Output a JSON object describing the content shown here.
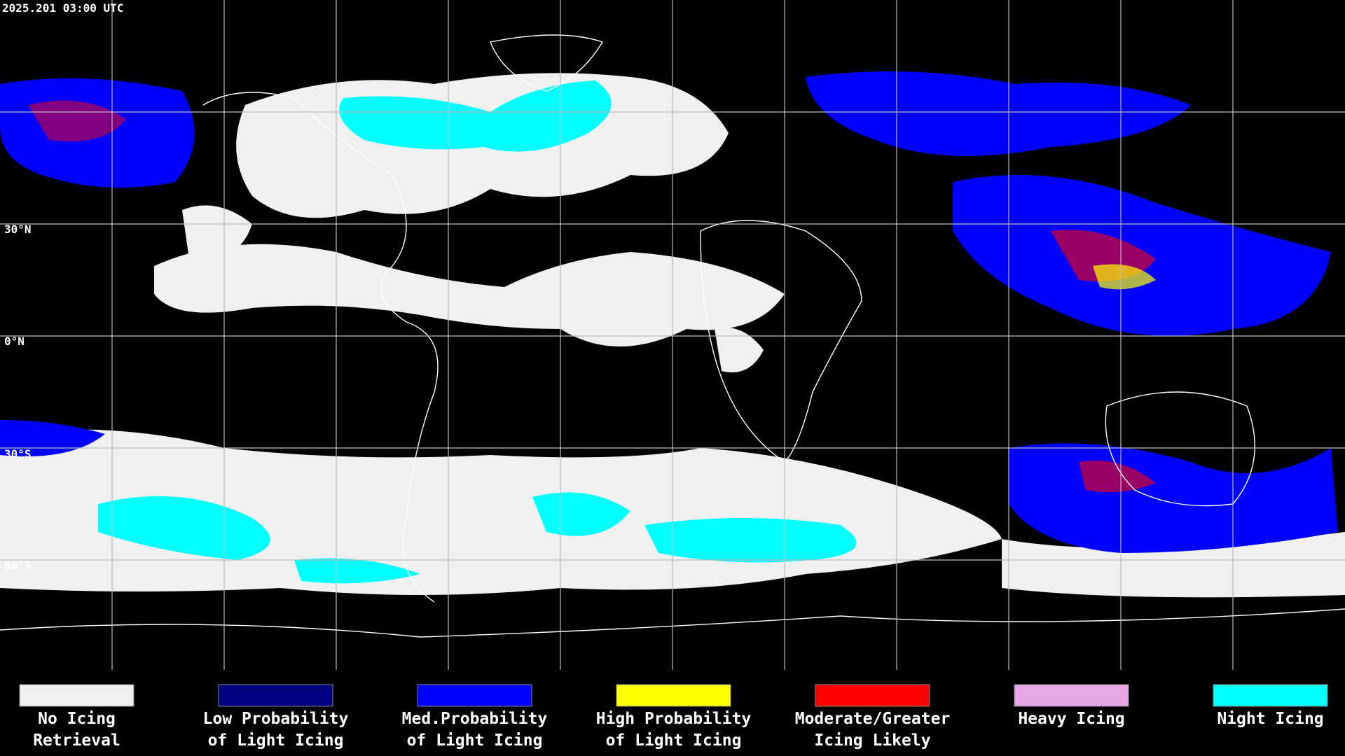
{
  "timestamp": "2025.201 03:00 UTC",
  "latitude_labels": [
    "30°N",
    "0°N",
    "30°S",
    "60°S"
  ],
  "legend": [
    {
      "label": [
        "No Icing",
        "Retrieval"
      ],
      "color": "#f0f0f0"
    },
    {
      "label": [
        "Low Probability",
        "of Light Icing"
      ],
      "color": "#000080"
    },
    {
      "label": [
        "Med.Probability",
        "of Light Icing"
      ],
      "color": "#0000ff"
    },
    {
      "label": [
        "High Probability",
        "of Light Icing"
      ],
      "color": "#ffff00"
    },
    {
      "label": [
        "Moderate/Greater",
        "Icing Likely"
      ],
      "color": "#ff0000"
    },
    {
      "label": [
        "Heavy Icing"
      ],
      "color": "#e8a8e8"
    },
    {
      "label": [
        "Night Icing"
      ],
      "color": "#00ffff"
    }
  ]
}
